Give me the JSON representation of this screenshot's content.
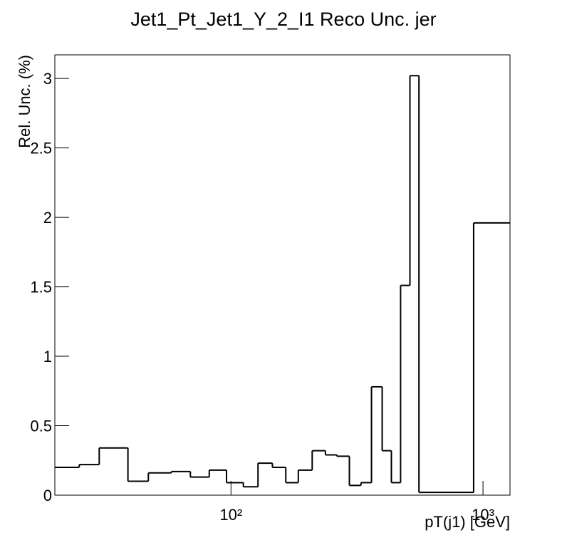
{
  "chart_data": {
    "type": "histogram",
    "title": "Jet1_Pt_Jet1_Y_2_I1 Reco Unc. jer",
    "x_label": "pT(j1) [GeV]",
    "y_label": "Rel. Unc. (%)",
    "bins": [
      20,
      25,
      30,
      39,
      47,
      58,
      69,
      82,
      96,
      112,
      128,
      146,
      165,
      185,
      210,
      237,
      263,
      295,
      328,
      361,
      398,
      433,
      471,
      513,
      557,
      918,
      1280
    ],
    "values": [
      0.2,
      0.22,
      0.34,
      0.1,
      0.16,
      0.17,
      0.13,
      0.18,
      0.09,
      0.06,
      0.23,
      0.2,
      0.09,
      0.18,
      0.32,
      0.29,
      0.28,
      0.07,
      0.09,
      0.78,
      0.32,
      0.09,
      1.51,
      3.02,
      0.02,
      1.96
    ],
    "color": "#000000",
    "xlog": true,
    "xlim": [
      20,
      1280
    ],
    "ylim": [
      0,
      3.17
    ],
    "xticks": [
      {
        "value": 100,
        "label": "10²"
      },
      {
        "value": 1000,
        "label": "10³"
      }
    ],
    "yticks": [
      0,
      0.5,
      1,
      1.5,
      2,
      2.5,
      3
    ]
  }
}
